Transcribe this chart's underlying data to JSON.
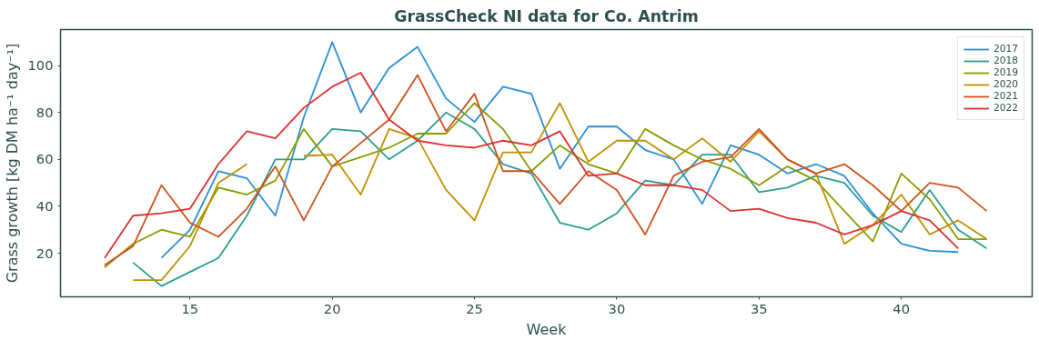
{
  "chart_data": {
    "type": "line",
    "title": "GrassCheck NI data for Co. Antrim",
    "xlabel": "Week",
    "ylabel": "Grass growth [kg DM ha⁻¹ day⁻¹]",
    "xlim": [
      10.45,
      44.6
    ],
    "ylim": [
      1.4,
      115.4
    ],
    "xticks": [
      15,
      20,
      25,
      30,
      35,
      40
    ],
    "yticks": [
      20,
      40,
      60,
      80,
      100
    ],
    "grid": false,
    "legend": "top right",
    "marker": "none",
    "line_style": "solid",
    "series": [
      {
        "name": "2017",
        "color": "#2b8fd6",
        "x": [
          14,
          15,
          16,
          17,
          18,
          19,
          20,
          21,
          22,
          23,
          24,
          25,
          26,
          27,
          28,
          29,
          30,
          31,
          32,
          33,
          34,
          35,
          36,
          37,
          38,
          39,
          40,
          41,
          42
        ],
        "values": [
          18,
          30,
          55,
          52,
          36,
          78,
          110,
          80,
          99,
          108,
          86,
          76,
          91,
          88,
          56,
          74,
          74,
          64,
          60,
          41,
          66,
          62,
          54,
          58,
          53,
          37,
          24,
          21,
          20.5
        ]
      },
      {
        "name": "2018",
        "color": "#2a9d8f",
        "x": [
          13,
          14,
          15,
          16,
          17,
          18,
          19,
          20,
          21,
          22,
          23,
          24,
          25,
          26,
          27,
          28,
          29,
          30,
          31,
          32,
          33,
          34,
          35,
          36,
          37,
          38,
          39,
          40,
          41,
          42,
          43
        ],
        "values": [
          16,
          6,
          12,
          18,
          36,
          60,
          60,
          73,
          72,
          60,
          68,
          80,
          73,
          58,
          54,
          33,
          30,
          37,
          51,
          49,
          62,
          62,
          46,
          48,
          53,
          50,
          36,
          29,
          47,
          30,
          22
        ]
      },
      {
        "name": "2019",
        "color": "#8a9a00",
        "x": [
          12,
          13,
          14,
          15,
          16,
          17,
          18,
          19,
          20,
          21,
          22,
          23,
          24,
          25,
          26,
          27,
          28,
          29,
          30,
          31,
          32,
          33,
          34,
          35,
          36,
          37,
          38,
          39,
          40,
          41,
          42,
          43
        ],
        "values": [
          14,
          24,
          30,
          27,
          48,
          45,
          51,
          73,
          57,
          61,
          65,
          71,
          71,
          84,
          73,
          55,
          66,
          58,
          54,
          73,
          66,
          60,
          56,
          49,
          57,
          51,
          38,
          25,
          54,
          43,
          26,
          26
        ]
      },
      {
        "name": "2020",
        "color": "#c09000",
        "x": [
          13,
          14,
          15,
          16,
          17,
          18,
          19,
          20,
          21,
          22,
          23,
          24,
          25,
          26,
          27,
          28,
          29,
          30,
          31,
          32,
          33,
          34,
          35,
          36,
          37,
          38,
          39,
          40,
          41,
          42,
          43
        ],
        "values": [
          8.5,
          8.5,
          23,
          50,
          58,
          null,
          61.5,
          62,
          45,
          73,
          69,
          47,
          34,
          63,
          63,
          84,
          59,
          68,
          68,
          60,
          69,
          59,
          72,
          60,
          54,
          24,
          32,
          45,
          28,
          34,
          26
        ]
      },
      {
        "name": "2021",
        "color": "#d0501a",
        "x": [
          12,
          13,
          14,
          15,
          16,
          17,
          18,
          19,
          20,
          21,
          22,
          23,
          24,
          25,
          26,
          27,
          28,
          29,
          30,
          31,
          32,
          33,
          34,
          35,
          36,
          37,
          38,
          39,
          40,
          41,
          42,
          43
        ],
        "values": [
          15,
          23,
          49,
          33,
          27,
          39,
          57,
          34,
          57,
          67,
          77,
          96,
          72,
          88,
          55,
          55,
          41,
          55,
          47,
          28,
          53,
          59,
          61,
          73,
          60,
          54,
          58,
          49,
          38,
          50,
          48,
          38
        ]
      },
      {
        "name": "2022",
        "color": "#dc3030",
        "x": [
          12,
          13,
          14,
          15,
          16,
          17,
          18,
          19,
          20,
          21,
          22,
          23,
          24,
          25,
          26,
          27,
          28,
          29,
          30,
          31,
          32,
          33,
          34,
          35,
          36,
          37,
          38,
          39,
          40,
          41,
          42
        ],
        "values": [
          18,
          36,
          37,
          39,
          58,
          72,
          69,
          82,
          91,
          97,
          77,
          68,
          66,
          65,
          68,
          66,
          72,
          53,
          54,
          49,
          49,
          47,
          38,
          39,
          35,
          33,
          28,
          32,
          38,
          34,
          22
        ]
      }
    ]
  }
}
